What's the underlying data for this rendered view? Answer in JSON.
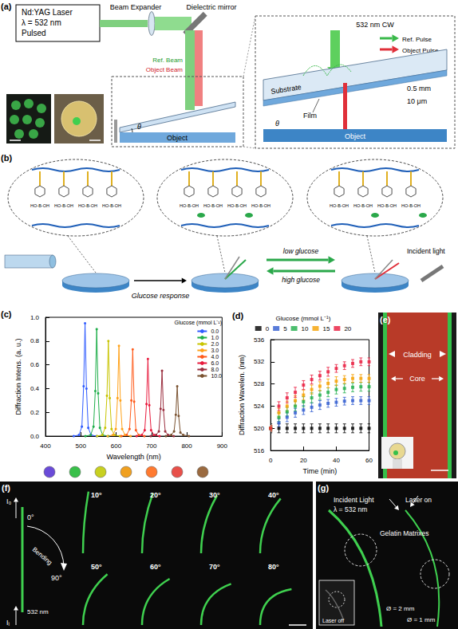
{
  "chart_data": [
    {
      "type": "line",
      "xlabel": "Wavelength (nm)",
      "ylabel": "Diffraction Intens. (a. u.)",
      "xlim": [
        400,
        900
      ],
      "xticks": [
        400,
        500,
        600,
        700,
        800,
        900
      ],
      "ylim": [
        0,
        1.0
      ],
      "yticks": [
        {
          "value": 0,
          "label": "0.0"
        },
        {
          "value": 0.2,
          "label": "0.2"
        },
        {
          "value": 0.4,
          "label": "0.4"
        },
        {
          "value": 0.6,
          "label": "0.6"
        },
        {
          "value": 0.8,
          "label": "0.8"
        },
        {
          "value": 1.0,
          "label": "1.0"
        }
      ],
      "grid": false,
      "legend": "upper right",
      "legend_title": "Glucose (mmol L⁻¹)",
      "marker": "circle",
      "series": [
        {
          "name": "0.0",
          "color": "#2f5bff",
          "x": [
            480,
            495,
            503,
            508,
            512,
            516,
            521,
            529,
            545
          ],
          "values": [
            0,
            0.01,
            0.08,
            0.42,
            0.95,
            0.4,
            0.07,
            0.01,
            0
          ]
        },
        {
          "name": "1.0",
          "color": "#1fae4a",
          "x": [
            513,
            528,
            536,
            541,
            545,
            549,
            554,
            562,
            578
          ],
          "values": [
            0,
            0.01,
            0.08,
            0.38,
            0.9,
            0.36,
            0.07,
            0.01,
            0
          ]
        },
        {
          "name": "2.0",
          "color": "#c8c400",
          "x": [
            546,
            561,
            569,
            574,
            578,
            582,
            587,
            595,
            611
          ],
          "values": [
            0,
            0.01,
            0.07,
            0.34,
            0.8,
            0.32,
            0.06,
            0.01,
            0
          ]
        },
        {
          "name": "3.0",
          "color": "#ffa21a",
          "x": [
            576,
            591,
            599,
            604,
            608,
            612,
            617,
            625,
            641
          ],
          "values": [
            0,
            0.01,
            0.06,
            0.32,
            0.76,
            0.3,
            0.06,
            0.01,
            0
          ]
        },
        {
          "name": "4.0",
          "color": "#ff5a1a",
          "x": [
            615,
            630,
            638,
            643,
            647,
            651,
            656,
            664,
            680
          ],
          "values": [
            0,
            0.01,
            0.06,
            0.3,
            0.73,
            0.29,
            0.05,
            0.01,
            0
          ]
        },
        {
          "name": "6.0",
          "color": "#e8193c",
          "x": [
            658,
            673,
            681,
            686,
            690,
            694,
            699,
            707,
            723
          ],
          "values": [
            0,
            0.01,
            0.05,
            0.27,
            0.65,
            0.26,
            0.05,
            0.01,
            0
          ]
        },
        {
          "name": "8.0",
          "color": "#9b3040",
          "x": [
            698,
            713,
            721,
            726,
            730,
            734,
            739,
            747,
            763
          ],
          "values": [
            0,
            0.01,
            0.04,
            0.23,
            0.55,
            0.22,
            0.04,
            0.01,
            0
          ]
        },
        {
          "name": "10.0",
          "color": "#7a5230",
          "x": [
            741,
            756,
            764,
            769,
            773,
            777,
            782,
            790,
            806
          ],
          "values": [
            0,
            0.01,
            0.04,
            0.18,
            0.42,
            0.17,
            0.03,
            0.01,
            0
          ]
        }
      ]
    },
    {
      "type": "scatter",
      "xlabel": "Time (min)",
      "ylabel": "Diffraction Wavelen. (nm)",
      "xlim": [
        0,
        60
      ],
      "xticks": [
        0,
        20,
        40,
        60
      ],
      "ylim": [
        516,
        536
      ],
      "yticks": [
        516,
        520,
        524,
        528,
        532,
        536
      ],
      "grid": false,
      "legend": "upper center",
      "legend_title": "Glucose (mmol L⁻¹)",
      "marker": "square",
      "x": [
        0,
        5,
        10,
        15,
        20,
        25,
        30,
        35,
        40,
        45,
        50,
        55,
        60
      ],
      "series": [
        {
          "name": "0",
          "color": "#000000",
          "values": [
            520,
            520,
            520,
            520,
            520,
            520,
            520,
            520,
            520,
            520,
            520,
            520,
            520
          ],
          "errors": [
            0.8,
            0.8,
            0.8,
            0.8,
            0.8,
            0.8,
            0.8,
            0.8,
            0.8,
            0.8,
            0.8,
            0.8,
            0.8
          ]
        },
        {
          "name": "5",
          "color": "#2f5bd0",
          "values": [
            520,
            521,
            522,
            522.8,
            523.3,
            523.8,
            524.2,
            524.5,
            524.7,
            524.9,
            525,
            525,
            525
          ],
          "errors": [
            0.5,
            0.7,
            0.8,
            0.8,
            0.8,
            0.8,
            0.8,
            0.7,
            0.7,
            0.7,
            0.7,
            0.7,
            0.7
          ]
        },
        {
          "name": "10",
          "color": "#1fae4a",
          "values": [
            520,
            522,
            523,
            524,
            524.8,
            525.5,
            526,
            526.5,
            527,
            527.2,
            527.4,
            527.5,
            527.5
          ],
          "errors": [
            0.5,
            0.8,
            0.8,
            0.9,
            0.9,
            0.9,
            0.8,
            0.8,
            0.8,
            0.8,
            0.8,
            0.8,
            0.8
          ]
        },
        {
          "name": "15",
          "color": "#f5a000",
          "values": [
            520,
            522.8,
            524,
            525,
            526,
            527,
            527.6,
            528.1,
            528.5,
            528.8,
            529,
            529,
            529
          ],
          "errors": [
            0.5,
            0.8,
            0.9,
            0.9,
            0.9,
            0.8,
            0.8,
            0.8,
            0.8,
            0.7,
            0.7,
            0.7,
            0.7
          ]
        },
        {
          "name": "20",
          "color": "#e8193c",
          "values": [
            520,
            524,
            525.5,
            526.5,
            527.8,
            528.8,
            529.5,
            530.2,
            530.8,
            531.3,
            531.7,
            532,
            532
          ],
          "errors": [
            0.5,
            0.8,
            0.9,
            0.9,
            0.8,
            0.8,
            0.8,
            0.8,
            0.7,
            0.7,
            0.7,
            0.7,
            0.7
          ]
        }
      ]
    }
  ],
  "panel_labels": {
    "a": "(a)",
    "b": "(b)",
    "c": "(c)",
    "d": "(d)",
    "e": "(e)",
    "f": "(f)",
    "g": "(g)"
  },
  "a": {
    "laser": [
      "Nd:YAG Laser",
      "λ = 532 nm",
      "Pulsed"
    ],
    "beam_expander": "Beam Expander",
    "mirror": "Dielectric mirror",
    "ref_beam": "Ref. Beam",
    "object_beam": "Object Beam",
    "object": "Object",
    "angle": "θ",
    "cw": "532 nm CW",
    "ref_pulse": "Ref. Pulse",
    "object_pulse": "Object Pulse",
    "substrate": "Substrate",
    "substrate_thickness": "0.5 mm",
    "film": "Film",
    "film_thickness": "10 μm"
  },
  "b": {
    "group": "HO-B-OH",
    "glucose_response": "Glucose response",
    "low": "low glucose",
    "high": "high glucose",
    "incident": "Incident light"
  },
  "c": {
    "swatches": [
      "#6a4bd8",
      "#39c04a",
      "#c8d020",
      "#f0a020",
      "#ff7a30",
      "#e8504a",
      "#9a6a40"
    ]
  },
  "e": {
    "cladding": "Cladding",
    "core": "Core"
  },
  "f": {
    "out": "I₀",
    "start": "0°",
    "bending": "Bending",
    "end": "90°",
    "wavelength": "532 nm",
    "in": "Iᵢ",
    "angles": [
      "10°",
      "20°",
      "30°",
      "40°",
      "50°",
      "60°",
      "70°",
      "80°"
    ]
  },
  "g": {
    "incident": "Incident Light",
    "wavelength": "λ = 532 nm",
    "laser_on": "Laser on",
    "matrix": "Gelatin Matrixes",
    "laser_off": "Laser off",
    "d_large": "Ø = 2 mm",
    "d_small": "Ø = 1 mm"
  }
}
